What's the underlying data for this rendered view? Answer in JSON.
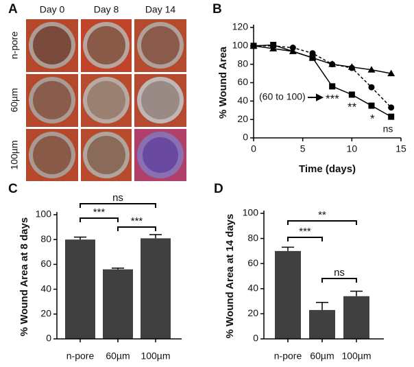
{
  "panel_a": {
    "label": "A",
    "columns": [
      "Day 0",
      "Day 8",
      "Day 14"
    ],
    "rows": [
      "n-pore",
      "60µm",
      "100µm"
    ]
  },
  "chart_data": [
    {
      "type": "line",
      "panel": "B",
      "xlabel": "Time (days)",
      "ylabel": "% Wound Area",
      "xlim": [
        0,
        15
      ],
      "xticks": [
        0,
        5,
        10,
        15
      ],
      "ylim": [
        0,
        120
      ],
      "yticks": [
        0,
        20,
        40,
        60,
        80,
        100,
        120
      ],
      "series": [
        {
          "color": "#000000",
          "marker": "square",
          "dashed": false,
          "x": [
            0,
            2,
            6,
            8,
            10,
            12,
            14
          ],
          "values": [
            100,
            101,
            87,
            56,
            47,
            35,
            23
          ]
        },
        {
          "color": "#000000",
          "marker": "circle",
          "dashed": true,
          "x": [
            0,
            2,
            4,
            6,
            8,
            10,
            12,
            14
          ],
          "values": [
            100,
            100,
            98,
            92,
            80,
            76,
            55,
            33
          ]
        },
        {
          "color": "#000000",
          "marker": "triangle",
          "dashed": false,
          "x": [
            0,
            2,
            4,
            6,
            8,
            10,
            12,
            14
          ],
          "values": [
            100,
            97,
            94,
            87,
            80,
            77,
            74,
            70
          ]
        }
      ],
      "annotations": [
        "(60 to 100)",
        "***",
        "**",
        "*",
        "ns"
      ]
    },
    {
      "type": "bar",
      "panel": "C",
      "ylabel": "% Wound Area at 8 days",
      "color": "#404040",
      "categories": [
        "n-pore",
        "60µm",
        "100µm"
      ],
      "values": [
        80,
        56,
        81
      ],
      "errors": [
        2,
        1,
        3
      ],
      "ylim": [
        0,
        100
      ],
      "yticks": [
        0,
        20,
        40,
        60,
        80,
        100
      ],
      "significance": [
        "***",
        "ns",
        "***"
      ]
    },
    {
      "type": "bar",
      "panel": "D",
      "ylabel": "% Wound Area at 14 days",
      "color": "#404040",
      "categories": [
        "n-pore",
        "60µm",
        "100µm"
      ],
      "values": [
        70,
        23,
        34
      ],
      "errors": [
        3,
        6,
        4
      ],
      "ylim": [
        0,
        100
      ],
      "yticks": [
        0,
        20,
        40,
        60,
        80,
        100
      ],
      "significance": [
        "***",
        "**",
        "ns"
      ]
    }
  ]
}
